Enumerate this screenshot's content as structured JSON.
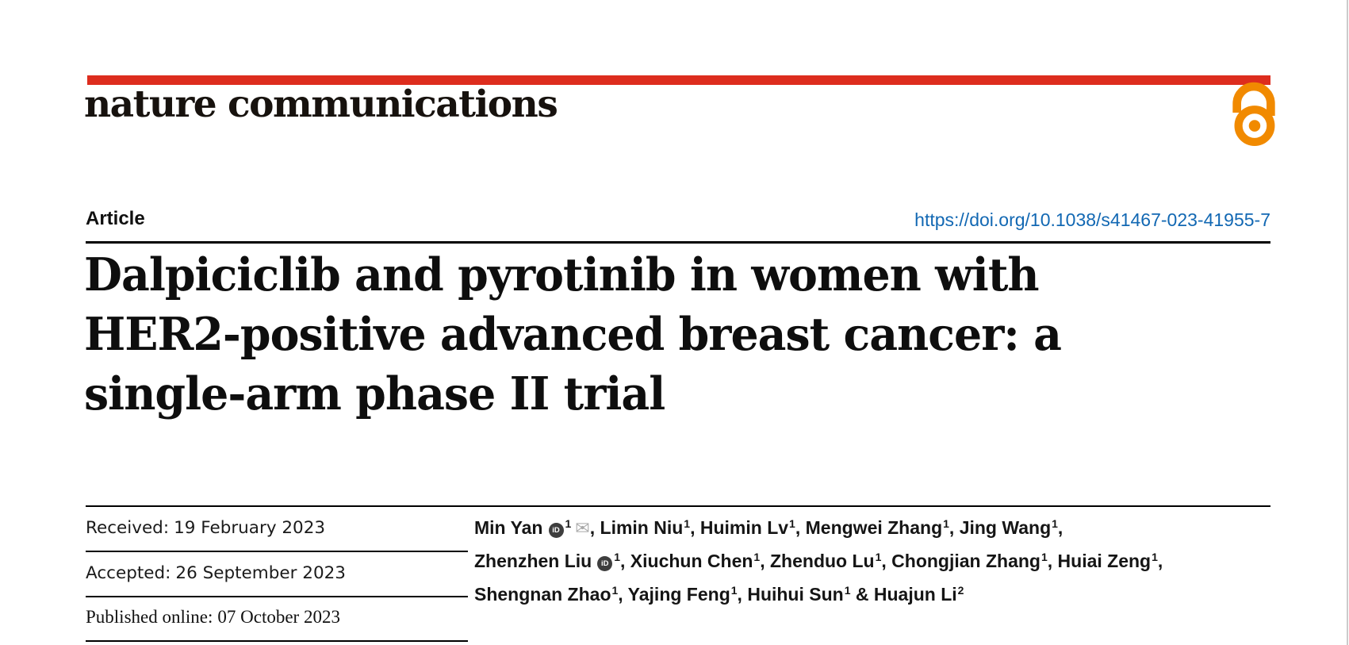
{
  "page": {
    "colors": {
      "brand_red": "#dd2d1e",
      "accent_orange": "#f18a00",
      "link_blue": "#1268b3",
      "ink": "#141414",
      "icon_gray": "#a9a9a9",
      "edge_gray": "#cccccc"
    }
  },
  "masthead": {
    "journal_name": "nature communications"
  },
  "article_meta": {
    "article_type": "Article",
    "doi_url": "https://doi.org/10.1038/s41467-023-41955-7"
  },
  "title": {
    "lines": [
      "Dalpiciclib and pyrotinib in women with",
      "HER2-positive advanced breast cancer: a",
      "single-arm phase II trial"
    ]
  },
  "history": {
    "rows": [
      {
        "label": "Received:",
        "value": "19 February 2023"
      },
      {
        "label": "Accepted:",
        "value": "26 September 2023"
      },
      {
        "label": "Published online:",
        "value": "07 October 2023"
      }
    ]
  },
  "authors": {
    "lines": [
      [
        {
          "name": "Min Yan",
          "orcid": true,
          "sup": "1",
          "email": true,
          "sep": ", "
        },
        {
          "name": "Limin Niu",
          "sup": "1",
          "sep": ", "
        },
        {
          "name": "Huimin Lv",
          "sup": "1",
          "sep": ", "
        },
        {
          "name": "Mengwei Zhang",
          "sup": "1",
          "sep": ", "
        },
        {
          "name": "Jing Wang",
          "sup": "1",
          "sep": ","
        }
      ],
      [
        {
          "name": "Zhenzhen Liu",
          "orcid": true,
          "sup": "1",
          "sep": ", "
        },
        {
          "name": "Xiuchun Chen",
          "sup": "1",
          "sep": ", "
        },
        {
          "name": "Zhenduo Lu",
          "sup": "1",
          "sep": ", "
        },
        {
          "name": "Chongjian Zhang",
          "sup": "1",
          "sep": ", "
        },
        {
          "name": "Huiai Zeng",
          "sup": "1",
          "sep": ","
        }
      ],
      [
        {
          "name": "Shengnan Zhao",
          "sup": "1",
          "sep": ", "
        },
        {
          "name": "Yajing Feng",
          "sup": "1",
          "sep": ", "
        },
        {
          "name": "Huihui Sun",
          "sup": "1",
          "sep": " & "
        },
        {
          "name": "Huajun Li",
          "sup": "2",
          "sep": ""
        }
      ]
    ]
  },
  "icons": {
    "orcid_label": "iD",
    "email_glyph": "✉"
  }
}
